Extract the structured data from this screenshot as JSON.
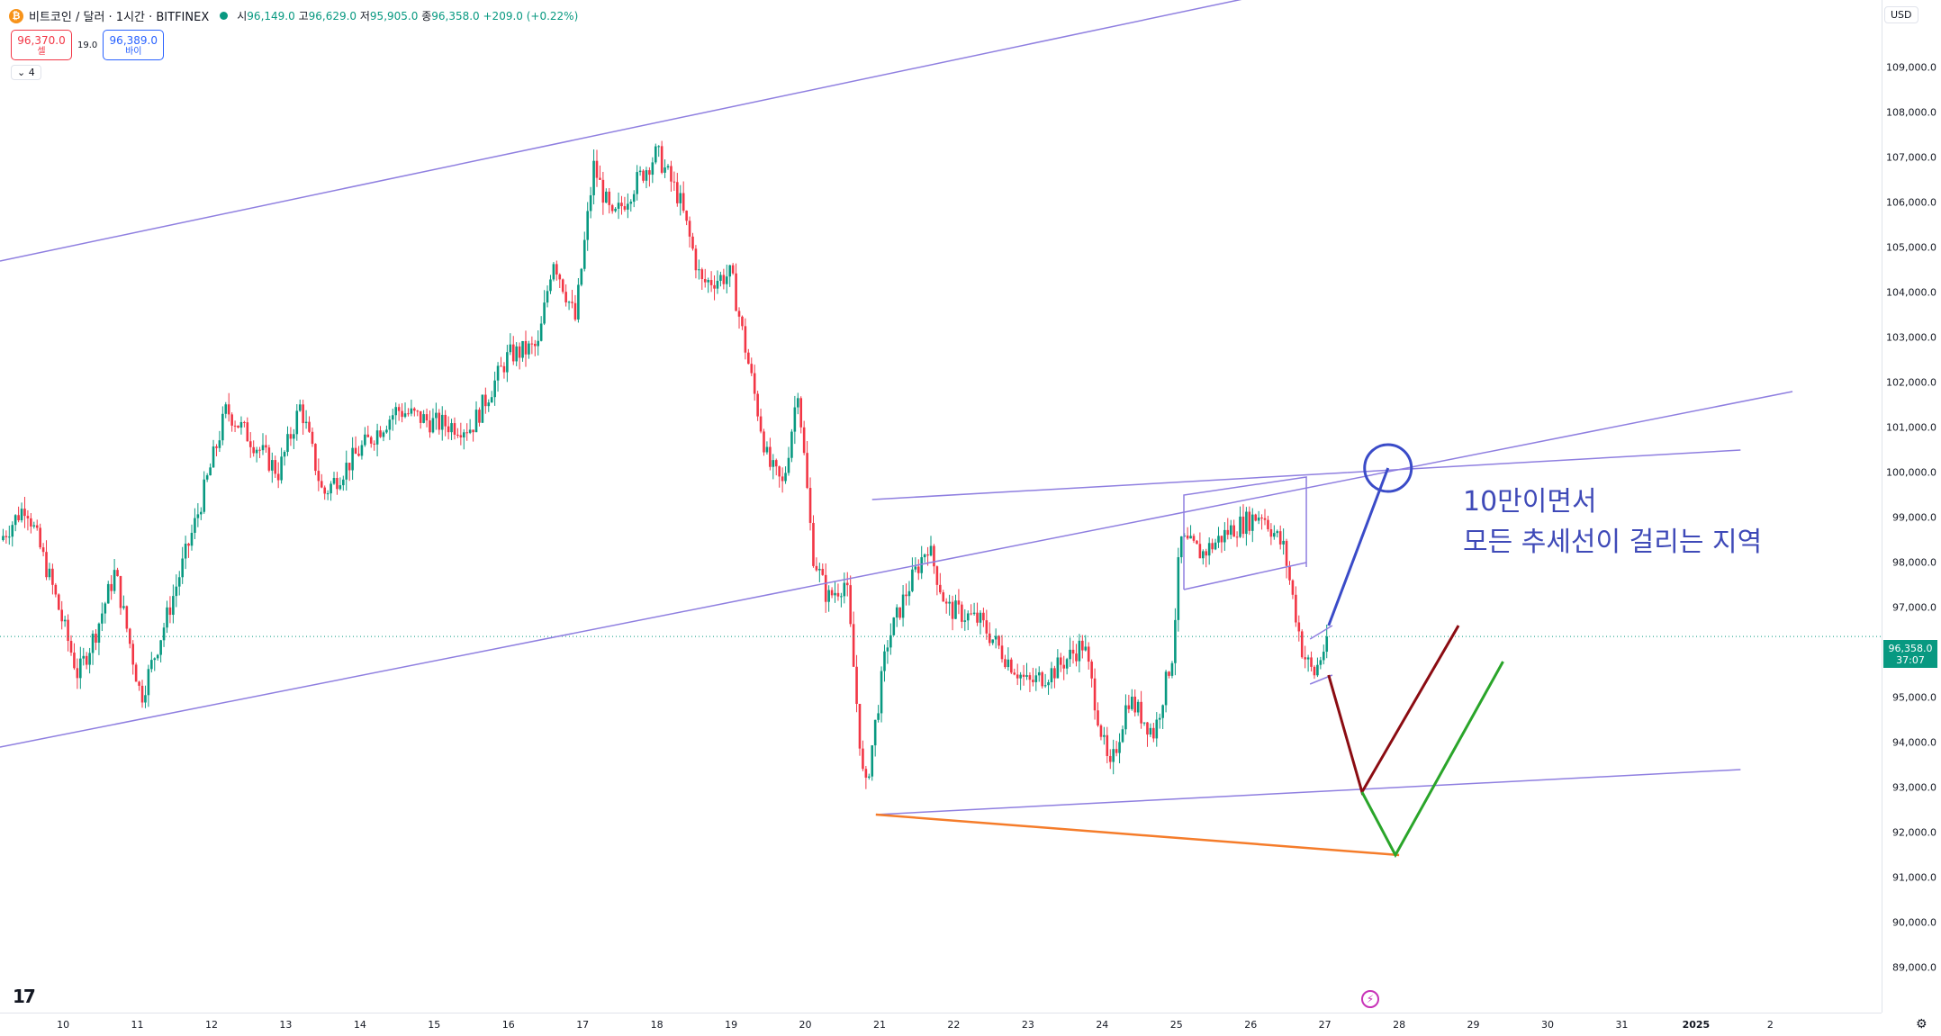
{
  "header": {
    "coin_symbol": "₿",
    "title": "비트코인 / 달러 · 1시간 · BITFINEX",
    "ohlc": {
      "open_label": "시",
      "open": "96,149.0",
      "high_label": "고",
      "high": "96,629.0",
      "low_label": "저",
      "low": "95,905.0",
      "close_label": "종",
      "close": "96,358.0",
      "change": "+209.0 (+0.22%)"
    }
  },
  "quote": {
    "sell_price": "96,370.0",
    "sell_label": "셀",
    "spread": "19.0",
    "buy_price": "96,389.0",
    "buy_label": "바이"
  },
  "indicator_toggle": "⌄ 4",
  "currency": "USD",
  "last_price": {
    "value": "96,358.0",
    "countdown": "37:07",
    "color": "#089981"
  },
  "annotation": {
    "line1": "10만이면서",
    "line2": "모든 추세선이 걸리는 지역",
    "color": "#3f4ab8"
  },
  "colors": {
    "up": "#089981",
    "down": "#f23645",
    "trend": "#8f7fe0",
    "orange": "#f57c2a",
    "blue": "#3a4bc8",
    "green": "#2aa52a",
    "darkred": "#8b0c12"
  },
  "chart_data": {
    "type": "candlestick",
    "y_axis_ticks": [
      "89,000.0",
      "90,000.0",
      "91,000.0",
      "92,000.0",
      "93,000.0",
      "94,000.0",
      "95,000.0",
      "96,000.0",
      "97,000.0",
      "98,000.0",
      "99,000.0",
      "100,000.0",
      "101,000.0",
      "102,000.0",
      "103,000.0",
      "104,000.0",
      "105,000.0",
      "106,000.0",
      "107,000.0",
      "108,000.0",
      "109,000.0"
    ],
    "x_axis_ticks": [
      {
        "label": "10",
        "day": 10
      },
      {
        "label": "11",
        "day": 11
      },
      {
        "label": "12",
        "day": 12
      },
      {
        "label": "13",
        "day": 13
      },
      {
        "label": "14",
        "day": 14
      },
      {
        "label": "15",
        "day": 15
      },
      {
        "label": "16",
        "day": 16
      },
      {
        "label": "17",
        "day": 17
      },
      {
        "label": "18",
        "day": 18
      },
      {
        "label": "19",
        "day": 19
      },
      {
        "label": "20",
        "day": 20
      },
      {
        "label": "21",
        "day": 21
      },
      {
        "label": "22",
        "day": 22
      },
      {
        "label": "23",
        "day": 23
      },
      {
        "label": "24",
        "day": 24
      },
      {
        "label": "25",
        "day": 25
      },
      {
        "label": "26",
        "day": 26
      },
      {
        "label": "27",
        "day": 27
      },
      {
        "label": "28",
        "day": 28
      },
      {
        "label": "29",
        "day": 29
      },
      {
        "label": "30",
        "day": 30
      },
      {
        "label": "31",
        "day": 31
      },
      {
        "label": "2025",
        "day": 32,
        "bold": true
      },
      {
        "label": "2",
        "day": 33
      }
    ],
    "y_range": [
      88000,
      110500
    ],
    "x_range": [
      9.15,
      34.5
    ],
    "price_anchors": [
      [
        9.15,
        98500
      ],
      [
        9.5,
        99300
      ],
      [
        9.85,
        97500
      ],
      [
        10.2,
        95500
      ],
      [
        10.45,
        96500
      ],
      [
        10.7,
        97800
      ],
      [
        11.05,
        95000
      ],
      [
        11.4,
        96800
      ],
      [
        11.8,
        99000
      ],
      [
        12.2,
        101400
      ],
      [
        12.5,
        100800
      ],
      [
        12.9,
        100000
      ],
      [
        13.2,
        101500
      ],
      [
        13.5,
        99500
      ],
      [
        14.0,
        100500
      ],
      [
        14.5,
        101400
      ],
      [
        15.0,
        101100
      ],
      [
        15.5,
        101000
      ],
      [
        16.0,
        102600
      ],
      [
        16.4,
        102800
      ],
      [
        16.6,
        104800
      ],
      [
        16.9,
        103400
      ],
      [
        17.15,
        106800
      ],
      [
        17.4,
        105600
      ],
      [
        17.7,
        106400
      ],
      [
        18.0,
        107100
      ],
      [
        18.3,
        106100
      ],
      [
        18.6,
        104200
      ],
      [
        19.0,
        104400
      ],
      [
        19.2,
        102700
      ],
      [
        19.5,
        100200
      ],
      [
        19.7,
        99700
      ],
      [
        19.9,
        101900
      ],
      [
        20.1,
        98200
      ],
      [
        20.3,
        97200
      ],
      [
        20.55,
        97600
      ],
      [
        20.8,
        92800
      ],
      [
        21.1,
        96200
      ],
      [
        21.35,
        97300
      ],
      [
        21.65,
        98400
      ],
      [
        21.9,
        97000
      ],
      [
        22.35,
        96700
      ],
      [
        22.7,
        95900
      ],
      [
        23.0,
        95300
      ],
      [
        23.35,
        95600
      ],
      [
        23.75,
        96200
      ],
      [
        24.1,
        93300
      ],
      [
        24.35,
        95000
      ],
      [
        24.7,
        94200
      ],
      [
        24.95,
        96000
      ],
      [
        25.05,
        98500
      ],
      [
        25.35,
        98200
      ],
      [
        25.7,
        98700
      ],
      [
        26.15,
        99100
      ],
      [
        26.45,
        98300
      ],
      [
        26.7,
        96000
      ],
      [
        26.85,
        95500
      ],
      [
        27.05,
        96358
      ]
    ],
    "trend_lines": [
      {
        "from": [
          9.15,
          104700
        ],
        "to": [
          26.7,
          110800
        ]
      },
      {
        "from": [
          9.15,
          93900
        ],
        "to": [
          33.3,
          101800
        ]
      },
      {
        "from": [
          20.9,
          99400
        ],
        "to": [
          27.3,
          100000
        ]
      },
      {
        "from": [
          27.3,
          100000
        ],
        "to": [
          32.6,
          100500
        ]
      },
      {
        "from": [
          20.95,
          92400
        ],
        "to": [
          32.6,
          93400
        ]
      },
      {
        "from": [
          25.1,
          97400
        ],
        "to": [
          26.75,
          98000
        ]
      },
      {
        "from": [
          26.8,
          95300
        ],
        "to": [
          27.1,
          95500
        ]
      },
      {
        "from": [
          26.8,
          96300
        ],
        "to": [
          27.1,
          96600
        ]
      }
    ],
    "boxes": [
      {
        "from": [
          25.1,
          99500
        ],
        "to": [
          26.75,
          99900
        ]
      }
    ],
    "orange_line": {
      "from": [
        20.95,
        92400
      ],
      "to": [
        28.0,
        91500
      ]
    },
    "blue_path": [
      [
        27.05,
        96600
      ],
      [
        27.85,
        100100
      ]
    ],
    "blue_circle": {
      "center": [
        27.85,
        100100
      ],
      "radius_px": 26
    },
    "darkred_path": [
      [
        27.05,
        95500
      ],
      [
        27.5,
        92900
      ],
      [
        28.8,
        96600
      ]
    ],
    "green_path": [
      [
        27.5,
        92900
      ],
      [
        27.95,
        91500
      ],
      [
        29.4,
        95800
      ]
    ],
    "last_price": 96358
  }
}
